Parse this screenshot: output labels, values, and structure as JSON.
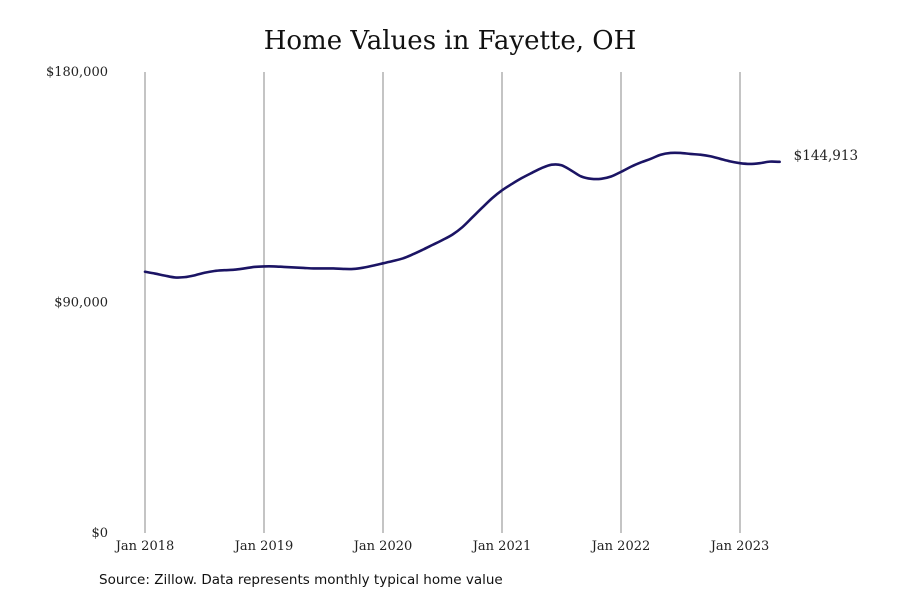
{
  "chart_data": {
    "type": "line",
    "title": "Home Values in Fayette, OH",
    "xlabel": "",
    "ylabel": "",
    "ylim": [
      0,
      180000
    ],
    "xlim": [
      "2018-01",
      "2023-06"
    ],
    "y_ticks": [
      {
        "value": 0,
        "label": "$0"
      },
      {
        "value": 90000,
        "label": "$90,000"
      },
      {
        "value": 180000,
        "label": "$180,000"
      }
    ],
    "x_ticks": [
      {
        "value": "2018-01",
        "label": "Jan 2018"
      },
      {
        "value": "2019-01",
        "label": "Jan 2019"
      },
      {
        "value": "2020-01",
        "label": "Jan 2020"
      },
      {
        "value": "2021-01",
        "label": "Jan 2021"
      },
      {
        "value": "2022-01",
        "label": "Jan 2022"
      },
      {
        "value": "2023-01",
        "label": "Jan 2023"
      }
    ],
    "grid": "vertical",
    "series": [
      {
        "color": "#1b1464",
        "x": [
          "2018-01",
          "2018-02",
          "2018-03",
          "2018-04",
          "2018-05",
          "2018-06",
          "2018-07",
          "2018-08",
          "2018-09",
          "2018-10",
          "2018-11",
          "2018-12",
          "2019-01",
          "2019-02",
          "2019-03",
          "2019-04",
          "2019-05",
          "2019-06",
          "2019-07",
          "2019-08",
          "2019-09",
          "2019-10",
          "2019-11",
          "2019-12",
          "2020-01",
          "2020-02",
          "2020-03",
          "2020-04",
          "2020-05",
          "2020-06",
          "2020-07",
          "2020-08",
          "2020-09",
          "2020-10",
          "2020-11",
          "2020-12",
          "2021-01",
          "2021-02",
          "2021-03",
          "2021-04",
          "2021-05",
          "2021-06",
          "2021-07",
          "2021-08",
          "2021-09",
          "2021-10",
          "2021-11",
          "2021-12",
          "2022-01",
          "2022-02",
          "2022-03",
          "2022-04",
          "2022-05",
          "2022-06",
          "2022-07",
          "2022-08",
          "2022-09",
          "2022-10",
          "2022-11",
          "2022-12",
          "2023-01",
          "2023-02",
          "2023-03",
          "2023-04",
          "2023-05"
        ],
        "values": [
          102000,
          101300,
          100500,
          99800,
          99900,
          100600,
          101600,
          102300,
          102600,
          102800,
          103300,
          103900,
          104100,
          104100,
          103900,
          103700,
          103500,
          103300,
          103300,
          103300,
          103100,
          103100,
          103600,
          104400,
          105300,
          106200,
          107200,
          108800,
          110600,
          112500,
          114400,
          116500,
          119400,
          123200,
          127000,
          130700,
          133800,
          136300,
          138600,
          140600,
          142500,
          143800,
          143600,
          141500,
          139200,
          138300,
          138300,
          139200,
          141000,
          143000,
          144700,
          146100,
          147700,
          148400,
          148400,
          148000,
          147700,
          147100,
          146100,
          145100,
          144400,
          144100,
          144400,
          145000,
          144913
        ]
      }
    ],
    "end_label": "$144,913"
  },
  "footer": {
    "source": "Source: Zillow. Data represents monthly typical home value"
  }
}
